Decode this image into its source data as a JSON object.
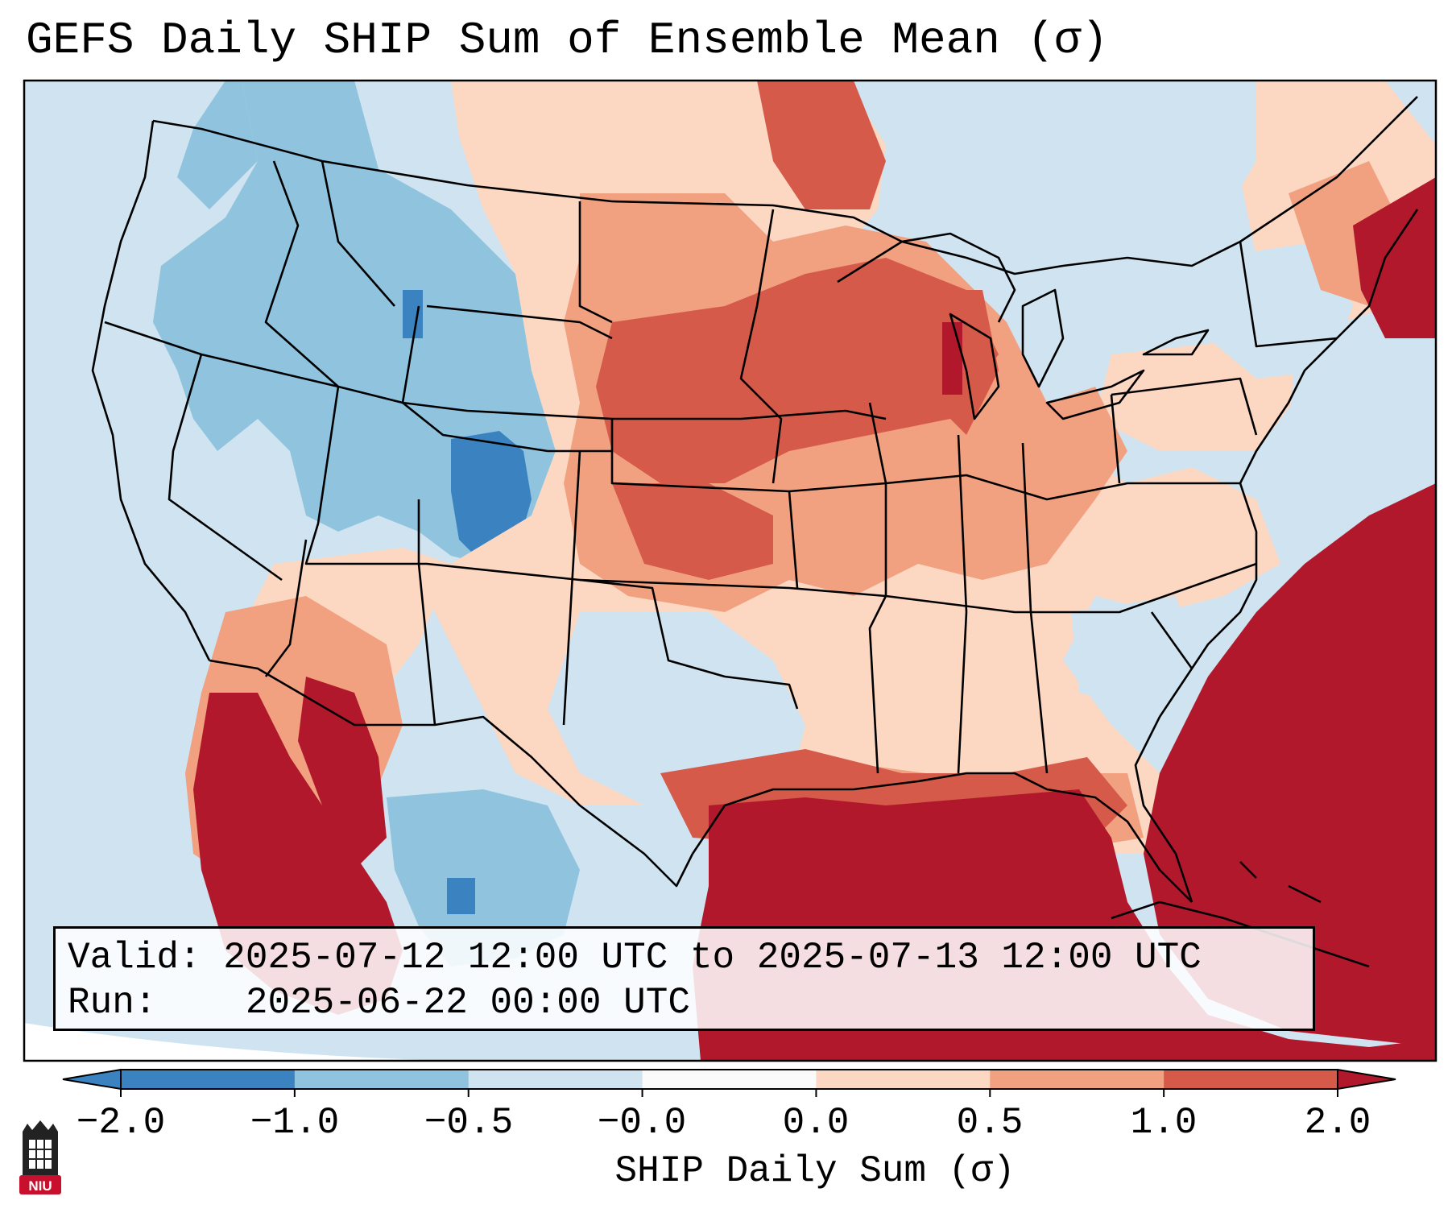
{
  "title": "GEFS Daily SHIP Sum of Ensemble Mean (σ)",
  "info": {
    "valid_label": "Valid:",
    "valid_value": "2025-07-12 12:00 UTC to 2025-07-13 12:00 UTC",
    "run_label": "Run:",
    "run_value": "2025-06-22 00:00 UTC"
  },
  "colorbar": {
    "label": "SHIP Daily Sum (σ)",
    "ticks": [
      "−2.0",
      "−1.0",
      "−0.5",
      "−0.0",
      "0.0",
      "0.5",
      "1.0",
      "2.0"
    ],
    "colors": [
      "#3a83c0",
      "#8fc3de",
      "#cfe4f0",
      "#fafafa",
      "#fcd7c2",
      "#f1a080",
      "#d55a4a",
      "#b2182b"
    ]
  },
  "logo": {
    "text": "NIU",
    "colors": {
      "red": "#c8102e",
      "black": "#222222"
    }
  },
  "map": {
    "ocean_color": "#cfe4f0",
    "border_color": "#000000"
  }
}
